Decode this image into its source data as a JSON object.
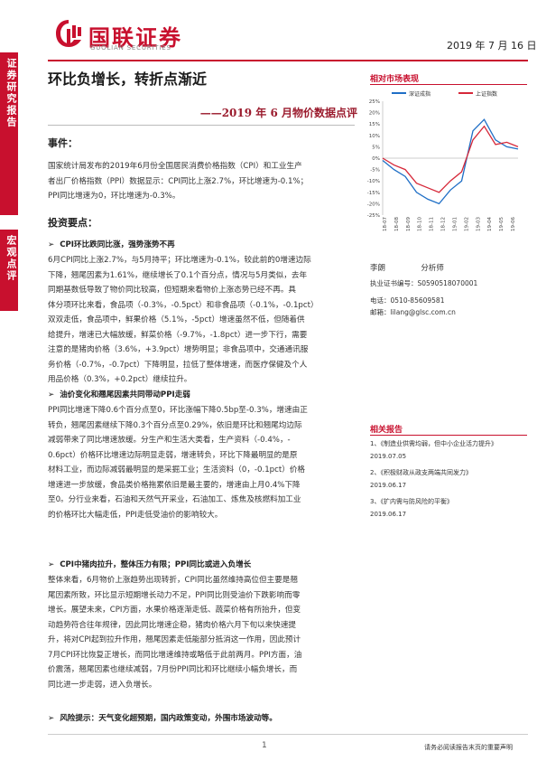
{
  "header": {
    "logo_cn": "国联证券",
    "logo_en": "GUOLIAN SECURITIES",
    "date": "2019 年 7 月 16 日"
  },
  "sidebar": {
    "top_label": "证券研究报告",
    "mid_label": "宏观点评"
  },
  "report": {
    "title": "环比负增长，转折点渐近",
    "subtitle": "——2019 年 6 月物价数据点评"
  },
  "event": {
    "heading": "事件：",
    "lines": [
      "国家统计局发布的2019年6月份全国居民消费价格指数（CPI）和工业生产",
      "者出厂价格指数（PPI）数据显示：CPI同比上涨2.7%，环比增速为-0.1%；",
      "PPI同比增速为0，环比增速为-0.3%。"
    ]
  },
  "invest": {
    "heading": "投资要点：",
    "points": [
      {
        "title": "CPI环比跌同比涨，强势涨势不再",
        "lines": [
          "6月CPI同比上涨2.7%，与5月持平；环比增速为-0.1%，较此前的0增速边际",
          "下降，翘尾因素为1.61%，继续增长了0.1个百分点，情况与5月类似，去年",
          "同期基数低导致了物价同比较高，但短期来看物价上涨态势已经不再。具",
          "体分项环比来看，食品项（-0.3%，-0.5pct）和非食品项（-0.1%，-0.1pct）",
          "双双走低，食品项中，鲜果价格（5.1%，-5pct）增速虽然不低，但随着供",
          "给提升，增速已大幅放缓，鲜菜价格（-9.7%，-1.8pct）进一步下行，需要",
          "注意的是猪肉价格（3.6%，+3.9pct）增势明显；非食品项中，交通通讯服",
          "务价格（-0.7%，-0.7pct）下降明显，拉低了整体增速，而医疗保健及个人",
          "用品价格（0.3%，+0.2pct）继续拉升。"
        ]
      },
      {
        "title": "油价变化和翘尾因素共同带动PPI走弱",
        "lines": [
          "PPI同比增速下降0.6个百分点至0，环比涨幅下降0.5bp至-0.3%，增速由正",
          "转负，翘尾因素继续下降0.3个百分点至0.29%，依旧是环比和翘尾均边际",
          "减弱带来了同比增速放缓。分生产和生活大类看，生产资料（-0.4%，-",
          "0.6pct）价格环比增速边际明显走弱，增速转负，环比下降最明显的是原",
          "材料工业，而边际减弱最明显的是采掘工业；生活资料（0，-0.1pct）价格",
          "增速进一步放缓，食品类价格拖累依旧是最主要的，增速由上月0.4%下降",
          "至0。分行业来看，石油和天然气开采业，石油加工、炼焦及核燃料加工业",
          "的价格环比大幅走低，PPI走低受油价的影响较大。"
        ]
      },
      {
        "title": "CPI中猪肉拉升，整体压力有限；PPI同比或进入负增长",
        "lines": [
          "整体来看，6月物价上涨趋势出现转折，CPI同比虽然维持高位但主要是翘",
          "尾因素所致，环比显示短期增长动力不足，PPI同比则受油价下跌影响而零",
          "增长。展望未来，CPI方面，水果价格逐渐走低、蔬菜价格有所抬升，但变",
          "动趋势符合往年规律，因此同比增速企稳，猪肉价格六月下旬以来快速提",
          "升，将对CPI起到拉升作用，翘尾因素走低能部分抵消这一作用，因此预计",
          "7月CPI环比恢复正增长，而同比增速维持或略低于此前两月。PPI方面，油",
          "价震荡，翘尾因素也继续减弱，7月份PPI同比和环比继续小幅负增长，而",
          "同比进一步走弱，进入负增长。"
        ]
      }
    ],
    "risk_label": "风险提示：",
    "risk_text": "天气变化超预期，国内政策变动，外围市场波动等。"
  },
  "market": {
    "heading": "相对市场表现",
    "legend": [
      "深证成指",
      "上证指数"
    ],
    "colors": {
      "szse": "#1f6fc6",
      "sse": "#d62839"
    },
    "chart_data": {
      "type": "line",
      "title": "相对市场表现",
      "xlabel": "",
      "ylabel": "",
      "ylim": [
        -25,
        25
      ],
      "y_ticks": [
        "25%",
        "20%",
        "15%",
        "10%",
        "5%",
        "0%",
        "-5%",
        "-10%",
        "-15%",
        "-20%",
        "-25%"
      ],
      "x_ticks": [
        "18-07",
        "18-08",
        "18-09",
        "18-10",
        "18-11",
        "18-12",
        "19-01",
        "19-02",
        "19-03",
        "19-04",
        "19-05",
        "19-06"
      ],
      "series": [
        {
          "name": "深证成指",
          "values": [
            -1,
            -5,
            -8,
            -15,
            -18,
            -20,
            -14,
            -10,
            12,
            17,
            8,
            5,
            4
          ]
        },
        {
          "name": "上证指数",
          "values": [
            0,
            -3,
            -5,
            -11,
            -13,
            -15,
            -10,
            -6,
            8,
            14,
            6,
            7,
            5
          ]
        }
      ]
    }
  },
  "analyst": {
    "name": "李朗",
    "role": "分析师",
    "cert": "执业证书编号：S0590518070001",
    "phone": "电话：0510-85609581",
    "email": "邮箱：lilang@glsc.com.cn"
  },
  "related": {
    "heading": "相关报告",
    "items": [
      {
        "title": "1、《制造业供需均弱，但中小企业活力提升》",
        "date": "2019.07.05"
      },
      {
        "title": "2、《积极财政从政支两端共同发力》",
        "date": "2019.06.17"
      },
      {
        "title": "3、《扩内需与防风险的平衡》",
        "date": "2019.06.17"
      }
    ]
  },
  "footer": {
    "page": "1",
    "note": "请务必阅读报告末页的重要声明"
  }
}
